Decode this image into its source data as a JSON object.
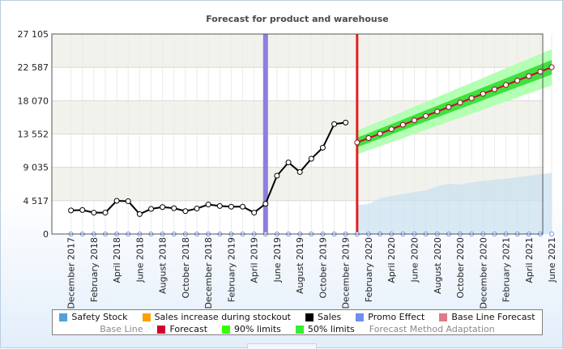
{
  "chart_data": {
    "type": "line",
    "title": "Forecast for product and warehouse",
    "ylim": [
      0,
      27105
    ],
    "y_ticks": [
      "0",
      "4 517",
      "9 035",
      "13 552",
      "18 070",
      "22 587",
      "27 105"
    ],
    "y_tick_values": [
      0,
      4517,
      9035,
      13552,
      18070,
      22587,
      27105
    ],
    "x_tick_labels": [
      "December 2017",
      "February 2018",
      "April 2018",
      "June 2018",
      "August 2018",
      "October 2018",
      "December 2018",
      "February 2019",
      "April 2019",
      "June 2019",
      "August 2019",
      "October 2019",
      "December 2019",
      "February 2020",
      "April 2020",
      "June 2020",
      "August 2020",
      "October 2020",
      "December 2020",
      "February 2021",
      "April 2021",
      "June 2021"
    ],
    "months": [
      "2017-12",
      "2018-01",
      "2018-02",
      "2018-03",
      "2018-04",
      "2018-05",
      "2018-06",
      "2018-07",
      "2018-08",
      "2018-09",
      "2018-10",
      "2018-11",
      "2018-12",
      "2019-01",
      "2019-02",
      "2019-03",
      "2019-04",
      "2019-05",
      "2019-06",
      "2019-07",
      "2019-08",
      "2019-09",
      "2019-10",
      "2019-11",
      "2019-12",
      "2020-01",
      "2020-02",
      "2020-03",
      "2020-04",
      "2020-05",
      "2020-06",
      "2020-07",
      "2020-08",
      "2020-09",
      "2020-10",
      "2020-11",
      "2020-12",
      "2021-01",
      "2021-02",
      "2021-03",
      "2021-04",
      "2021-05",
      "2021-06"
    ],
    "grid": true,
    "series": [
      {
        "name": "Sales",
        "color": "#000000",
        "x": [
          "2017-12",
          "2018-01",
          "2018-02",
          "2018-03",
          "2018-04",
          "2018-05",
          "2018-06",
          "2018-07",
          "2018-08",
          "2018-09",
          "2018-10",
          "2018-11",
          "2018-12",
          "2019-01",
          "2019-02",
          "2019-03",
          "2019-04",
          "2019-05",
          "2019-06",
          "2019-07",
          "2019-08",
          "2019-09",
          "2019-10",
          "2019-11",
          "2019-12"
        ],
        "values": [
          3200,
          3250,
          2900,
          2900,
          4500,
          4450,
          2700,
          3400,
          3650,
          3500,
          3100,
          3450,
          4000,
          3800,
          3700,
          3700,
          2900,
          4100,
          7900,
          9700,
          8400,
          10200,
          11700,
          14900,
          15100
        ]
      },
      {
        "name": "Forecast",
        "color": "#d40032",
        "x": [
          "2020-01",
          "2020-02",
          "2020-03",
          "2020-04",
          "2020-05",
          "2020-06",
          "2020-07",
          "2020-08",
          "2020-09",
          "2020-10",
          "2020-11",
          "2020-12",
          "2021-01",
          "2021-02",
          "2021-03",
          "2021-04",
          "2021-05",
          "2021-06"
        ],
        "values": [
          12400,
          13000,
          13600,
          14200,
          14800,
          15400,
          16000,
          16600,
          17200,
          17800,
          18400,
          19000,
          19600,
          20200,
          20800,
          21400,
          22000,
          22600
        ]
      },
      {
        "name": "90% limits",
        "color": "#b3ffb3",
        "half_width": [
          1600,
          1650,
          1700,
          1750,
          1800,
          1850,
          1900,
          1950,
          2000,
          2050,
          2100,
          2150,
          2200,
          2250,
          2300,
          2350,
          2400,
          2450
        ]
      },
      {
        "name": "50% limits",
        "color": "#3fe03f",
        "half_width": [
          650,
          660,
          680,
          700,
          720,
          740,
          760,
          780,
          800,
          820,
          840,
          860,
          880,
          900,
          920,
          940,
          960,
          980
        ]
      },
      {
        "name": "Safety Stock",
        "color": "#c7dff0",
        "x": [
          "2020-01",
          "2020-02",
          "2020-03",
          "2020-04",
          "2020-05",
          "2020-06",
          "2020-07",
          "2020-08",
          "2020-09",
          "2020-10",
          "2020-11",
          "2020-12",
          "2021-01",
          "2021-02",
          "2021-03",
          "2021-04",
          "2021-05",
          "2021-06"
        ],
        "values": [
          3900,
          4100,
          4800,
          5200,
          5400,
          5700,
          5900,
          6500,
          6800,
          6700,
          7000,
          7200,
          7400,
          7500,
          7700,
          7900,
          8100,
          8300
        ]
      }
    ],
    "markers": [
      {
        "name": "Promo Effect",
        "month": "2019-05",
        "color": "#8b7fe0"
      },
      {
        "name": "Forecast start",
        "month": "2020-01",
        "color": "#e02020"
      }
    ],
    "legend": {
      "placement": "bottom",
      "row1": [
        {
          "label": "Safety Stock",
          "color": "#4fa3d8",
          "hidden": false
        },
        {
          "label": "Sales increase during stockout",
          "color": "#ffa000",
          "hidden": false
        },
        {
          "label": "Sales",
          "color": "#000000",
          "hidden": false
        },
        {
          "label": "Promo Effect",
          "color": "#6d8ff0",
          "hidden": false
        },
        {
          "label": "Base Line Forecast",
          "color": "#e07a86",
          "hidden": false
        }
      ],
      "row2": [
        {
          "label": "Base Line",
          "color": "",
          "hidden": true
        },
        {
          "label": "Forecast",
          "color": "#d40032",
          "hidden": false
        },
        {
          "label": "90% limits",
          "color": "#33ff00",
          "hidden": false
        },
        {
          "label": "50% limits",
          "color": "#33ee33",
          "hidden": false
        },
        {
          "label": "Forecast Method Adaptation",
          "color": "",
          "hidden": true
        }
      ]
    }
  }
}
